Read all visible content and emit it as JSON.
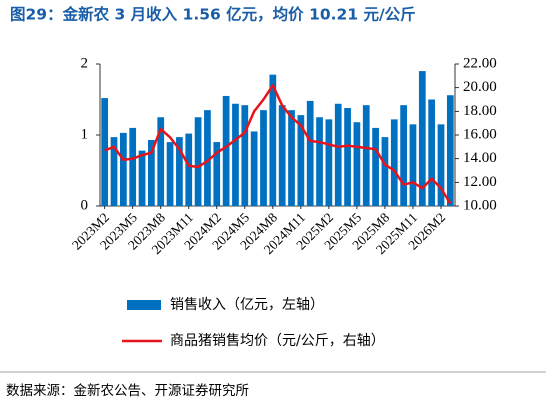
{
  "chart_data": {
    "type": "bar",
    "title": "图29：金新农 3 月收入 1.56 亿元，均价 10.21 元/公斤",
    "source": "数据来源：金新农公告、开源证券研究所",
    "categories": [
      "2023M2",
      null,
      null,
      "2023M5",
      null,
      null,
      "2023M8",
      null,
      null,
      "2023M11",
      null,
      null,
      "2024M2",
      null,
      null,
      "2024M5",
      null,
      null,
      "2024M8",
      null,
      null,
      "2024M11",
      null,
      null,
      "2025M2",
      null,
      null,
      "2025M5",
      null,
      null,
      "2025M8",
      null,
      null,
      "2025M11",
      null,
      null,
      "2026M2",
      null
    ],
    "series": [
      {
        "name": "销售收入（亿元，左轴）",
        "color": "#0070c0",
        "values": [
          1.52,
          0.97,
          1.03,
          1.1,
          0.78,
          0.93,
          1.25,
          0.9,
          0.97,
          1.02,
          1.25,
          1.35,
          0.9,
          1.55,
          1.44,
          1.42,
          1.05,
          1.35,
          1.85,
          1.42,
          1.35,
          1.28,
          1.48,
          1.25,
          1.22,
          1.44,
          1.38,
          1.18,
          1.42,
          1.1,
          0.97,
          1.22,
          1.42,
          1.15,
          1.9,
          1.5,
          1.15,
          1.56
        ]
      },
      {
        "name": "商品猪销售均价（元/公斤，右轴）",
        "color": "#e8141b",
        "axis": "y2",
        "values": [
          14.7,
          15.0,
          13.9,
          14.0,
          14.3,
          14.5,
          16.5,
          15.8,
          14.8,
          13.4,
          13.3,
          13.8,
          14.5,
          15.0,
          15.6,
          16.2,
          18.0,
          19.0,
          20.2,
          18.5,
          17.5,
          16.8,
          15.5,
          15.4,
          15.2,
          15.0,
          15.1,
          15.0,
          14.9,
          14.8,
          13.5,
          13.0,
          11.8,
          12.0,
          11.5,
          12.3,
          11.5,
          10.21
        ]
      }
    ],
    "ylim": [
      0,
      2
    ],
    "yticks": [
      0,
      1,
      2
    ],
    "y2lim": [
      10,
      22
    ],
    "y2ticks": [
      {
        "value": 10,
        "label": "10.00"
      },
      {
        "value": 12,
        "label": "12.00"
      },
      {
        "value": 14,
        "label": "14.00"
      },
      {
        "value": 16,
        "label": "16.00"
      },
      {
        "value": 18,
        "label": "18.00"
      },
      {
        "value": 20,
        "label": "20.00"
      },
      {
        "value": 22,
        "label": "22.00"
      }
    ]
  }
}
